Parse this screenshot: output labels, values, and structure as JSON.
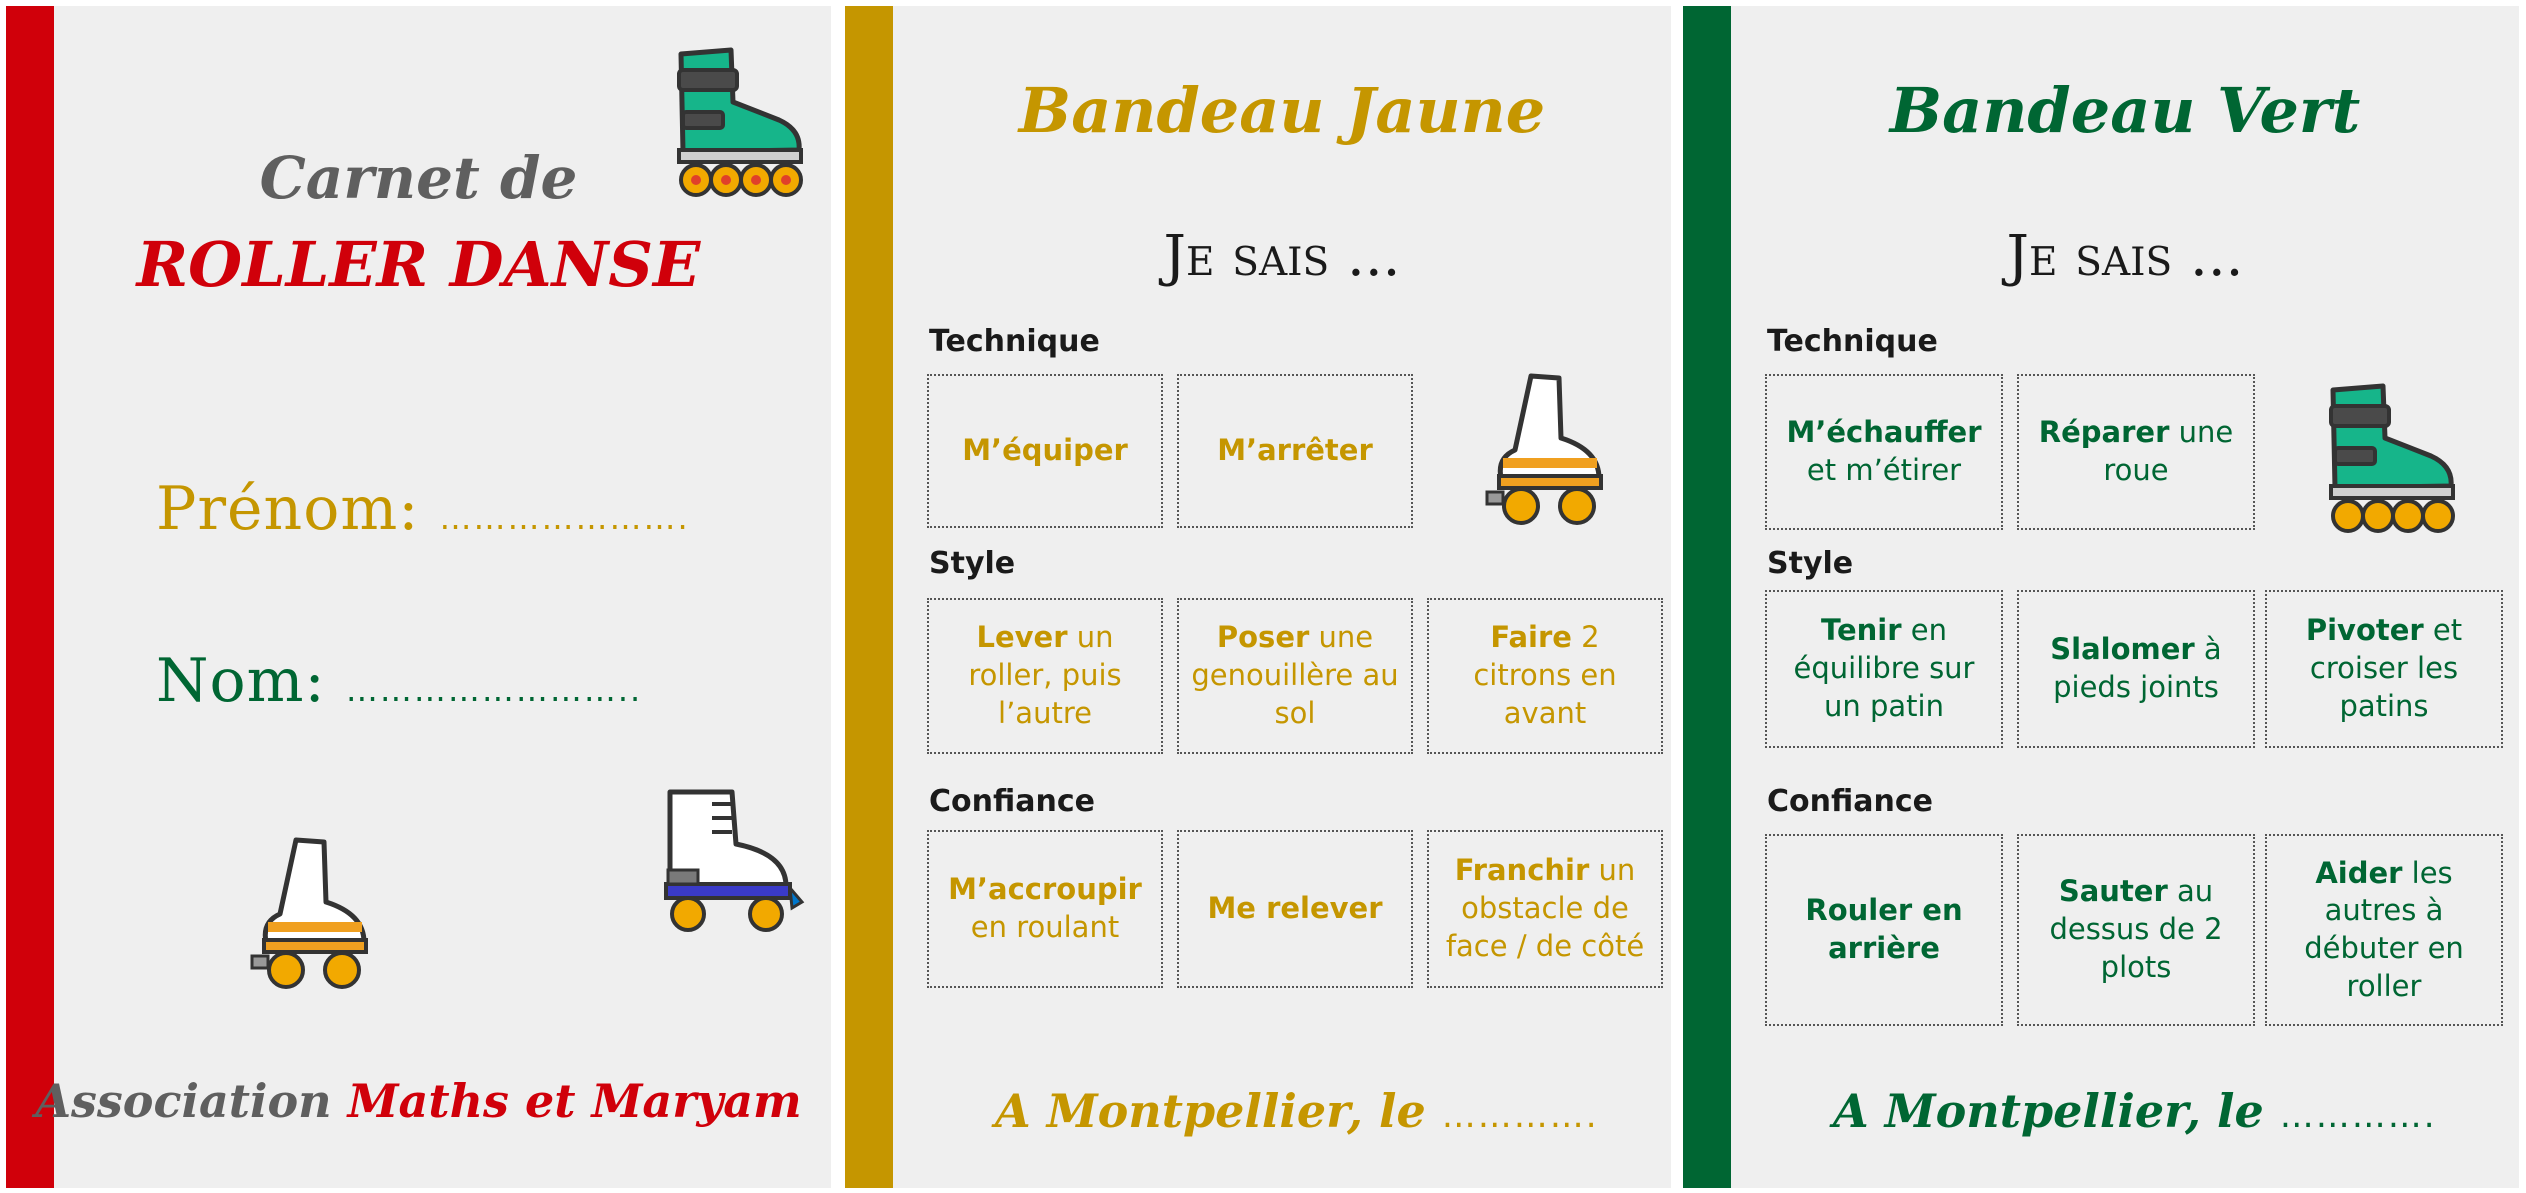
{
  "cover": {
    "title_line1": "Carnet de",
    "title_line2": "ROLLER DANSE",
    "prenom_label": "Prénom:",
    "prenom_dots": "………………….",
    "nom_label": "Nom:",
    "nom_dots": "……………………..",
    "assoc_prefix": "Association",
    "assoc_name": "Maths et Maryam"
  },
  "yellow": {
    "title": "Bandeau Jaune",
    "subtitle": "Je sais ...",
    "sections": {
      "technique": "Technique",
      "style": "Style",
      "confiance": "Confiance"
    },
    "technique": [
      {
        "bold": "M’équiper",
        "rest": ""
      },
      {
        "bold": "M’arrêter",
        "rest": ""
      }
    ],
    "style": [
      {
        "bold": "Lever",
        "rest": " un roller, puis l’autre"
      },
      {
        "bold": "Poser",
        "rest": " une genouillère au sol"
      },
      {
        "bold": "Faire",
        "rest": " 2 citrons en avant"
      }
    ],
    "confiance": [
      {
        "bold": "M’accroupir",
        "rest": " en roulant"
      },
      {
        "bold": "Me relever",
        "rest": ""
      },
      {
        "bold": "Franchir",
        "rest": " un obstacle de face / de côté"
      }
    ],
    "footer": "A Montpellier, le",
    "footer_dots": "…………."
  },
  "green": {
    "title": "Bandeau Vert",
    "subtitle": "Je sais ...",
    "sections": {
      "technique": "Technique",
      "style": "Style",
      "confiance": "Confiance"
    },
    "technique": [
      {
        "bold": "M’échauffer",
        "rest": " et m’étirer"
      },
      {
        "bold": "Réparer",
        "rest": " une roue"
      }
    ],
    "style": [
      {
        "bold": "Tenir",
        "rest": " en équilibre sur un patin"
      },
      {
        "bold": "Slalomer",
        "rest": " à pieds joints"
      },
      {
        "bold": "Pivoter",
        "rest": " et croiser les patins"
      }
    ],
    "confiance": [
      {
        "bold": "Rouler en arrière",
        "rest": ""
      },
      {
        "bold": "Sauter",
        "rest": " au dessus de 2 plots"
      },
      {
        "bold": "Aider",
        "rest": " les autres à débuter en roller"
      }
    ],
    "footer": "A Montpellier, le",
    "footer_dots": "…………."
  },
  "colors": {
    "red": "#d0000a",
    "gold": "#c59600",
    "green": "#006633",
    "grey": "#5f5f5f",
    "panel": "#efefef"
  },
  "icons": [
    "inline-skate-icon",
    "quad-skate-icon"
  ]
}
